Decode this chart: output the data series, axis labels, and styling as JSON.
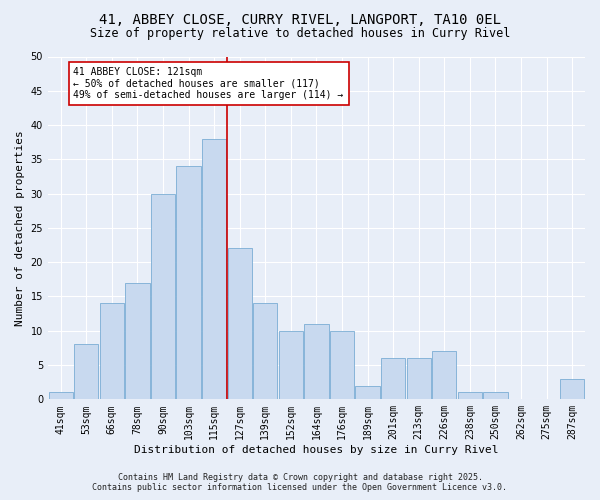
{
  "title": "41, ABBEY CLOSE, CURRY RIVEL, LANGPORT, TA10 0EL",
  "subtitle": "Size of property relative to detached houses in Curry Rivel",
  "xlabel": "Distribution of detached houses by size in Curry Rivel",
  "ylabel": "Number of detached properties",
  "categories": [
    "41sqm",
    "53sqm",
    "66sqm",
    "78sqm",
    "90sqm",
    "103sqm",
    "115sqm",
    "127sqm",
    "139sqm",
    "152sqm",
    "164sqm",
    "176sqm",
    "189sqm",
    "201sqm",
    "213sqm",
    "226sqm",
    "238sqm",
    "250sqm",
    "262sqm",
    "275sqm",
    "287sqm"
  ],
  "values": [
    1,
    8,
    14,
    17,
    30,
    34,
    38,
    22,
    14,
    10,
    11,
    10,
    2,
    6,
    6,
    7,
    1,
    1,
    0,
    0,
    3
  ],
  "bar_color": "#c8d9ef",
  "bar_edge_color": "#7aadd4",
  "background_color": "#e8eef8",
  "grid_color": "#ffffff",
  "vline_x": 6.5,
  "vline_color": "#cc0000",
  "annotation_text": "41 ABBEY CLOSE: 121sqm\n← 50% of detached houses are smaller (117)\n49% of semi-detached houses are larger (114) →",
  "annotation_box_color": "#ffffff",
  "annotation_box_edge_color": "#cc0000",
  "ylim": [
    0,
    50
  ],
  "yticks": [
    0,
    5,
    10,
    15,
    20,
    25,
    30,
    35,
    40,
    45,
    50
  ],
  "footer_line1": "Contains HM Land Registry data © Crown copyright and database right 2025.",
  "footer_line2": "Contains public sector information licensed under the Open Government Licence v3.0.",
  "title_fontsize": 10,
  "subtitle_fontsize": 8.5,
  "axis_label_fontsize": 8,
  "tick_fontsize": 7,
  "annotation_fontsize": 7,
  "footer_fontsize": 6
}
